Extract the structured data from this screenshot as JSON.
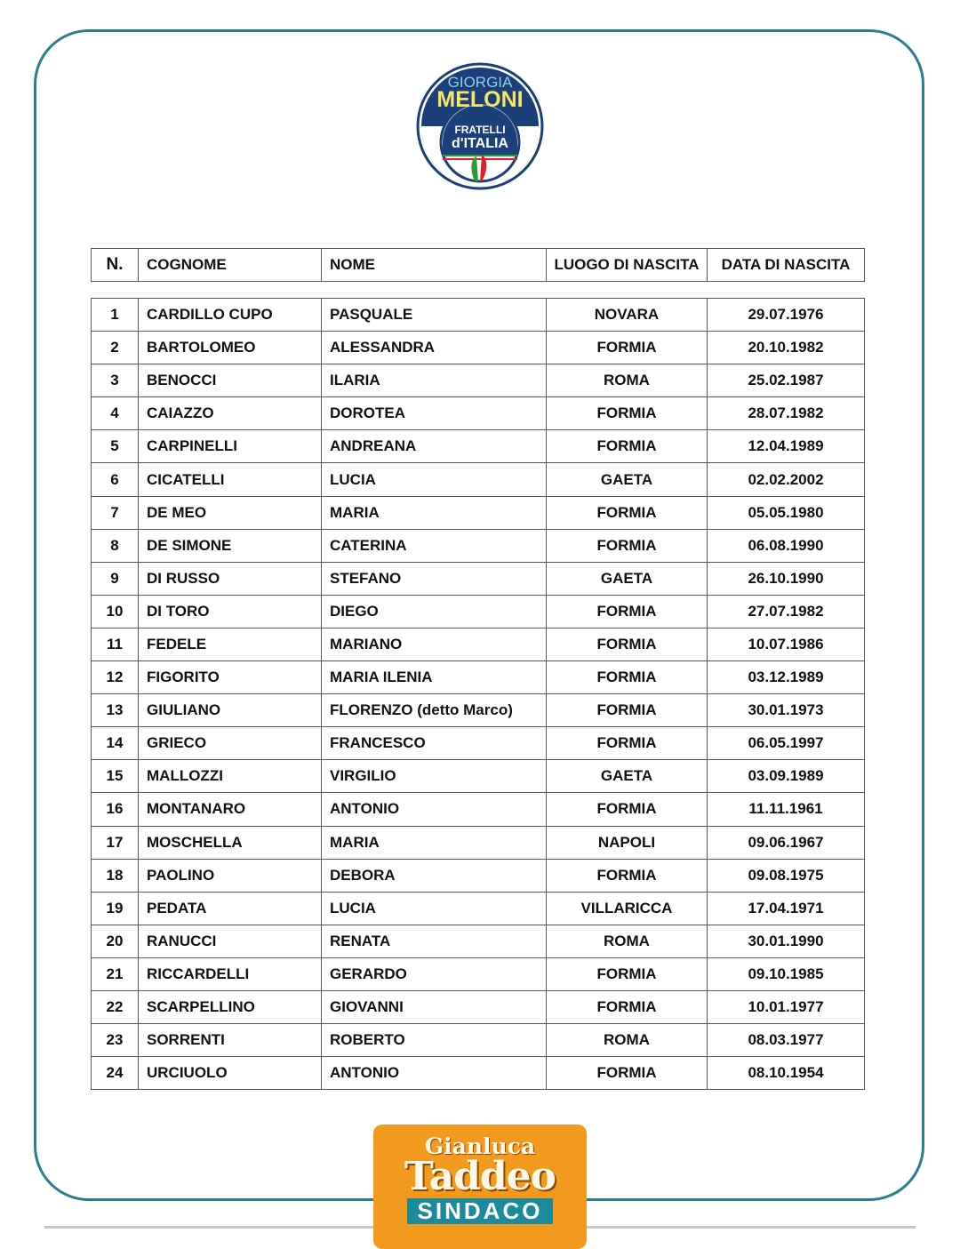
{
  "logo": {
    "line1": "GIORGIA",
    "line2": "MELONI",
    "line3": "FRATELLI",
    "line4": "d'ITALIA"
  },
  "table": {
    "headers": [
      "N.",
      "COGNOME",
      "NOME",
      "LUOGO DI NASCITA",
      "DATA DI NASCITA"
    ],
    "rows": [
      [
        "1",
        "CARDILLO CUPO",
        "PASQUALE",
        "NOVARA",
        "29.07.1976"
      ],
      [
        "2",
        "BARTOLOMEO",
        "ALESSANDRA",
        "FORMIA",
        "20.10.1982"
      ],
      [
        "3",
        "BENOCCI",
        "ILARIA",
        "ROMA",
        "25.02.1987"
      ],
      [
        "4",
        "CAIAZZO",
        "DOROTEA",
        "FORMIA",
        "28.07.1982"
      ],
      [
        "5",
        "CARPINELLI",
        "ANDREANA",
        "FORMIA",
        "12.04.1989"
      ],
      [
        "6",
        "CICATELLI",
        "LUCIA",
        "GAETA",
        "02.02.2002"
      ],
      [
        "7",
        "DE MEO",
        "MARIA",
        "FORMIA",
        "05.05.1980"
      ],
      [
        "8",
        "DE SIMONE",
        "CATERINA",
        "FORMIA",
        "06.08.1990"
      ],
      [
        "9",
        "DI RUSSO",
        "STEFANO",
        "GAETA",
        "26.10.1990"
      ],
      [
        "10",
        "DI TORO",
        "DIEGO",
        "FORMIA",
        "27.07.1982"
      ],
      [
        "11",
        "FEDELE",
        "MARIANO",
        "FORMIA",
        "10.07.1986"
      ],
      [
        "12",
        "FIGORITO",
        "MARIA ILENIA",
        "FORMIA",
        "03.12.1989"
      ],
      [
        "13",
        "GIULIANO",
        "FLORENZO (detto Marco)",
        "FORMIA",
        "30.01.1973"
      ],
      [
        "14",
        "GRIECO",
        "FRANCESCO",
        "FORMIA",
        "06.05.1997"
      ],
      [
        "15",
        "MALLOZZI",
        "VIRGILIO",
        "GAETA",
        "03.09.1989"
      ],
      [
        "16",
        "MONTANARO",
        "ANTONIO",
        "FORMIA",
        "11.11.1961"
      ],
      [
        "17",
        "MOSCHELLA",
        "MARIA",
        "NAPOLI",
        "09.06.1967"
      ],
      [
        "18",
        "PAOLINO",
        "DEBORA",
        "FORMIA",
        "09.08.1975"
      ],
      [
        "19",
        "PEDATA",
        "LUCIA",
        "VILLARICCA",
        "17.04.1971"
      ],
      [
        "20",
        "RANUCCI",
        "RENATA",
        "ROMA",
        "30.01.1990"
      ],
      [
        "21",
        "RICCARDELLI",
        "GERARDO",
        "FORMIA",
        "09.10.1985"
      ],
      [
        "22",
        "SCARPELLINO",
        "GIOVANNI",
        "FORMIA",
        "10.01.1977"
      ],
      [
        "23",
        "SORRENTI",
        "ROBERTO",
        "ROMA",
        "08.03.1977"
      ],
      [
        "24",
        "URCIUOLO",
        "ANTONIO",
        "FORMIA",
        "08.10.1954"
      ]
    ]
  },
  "badge": {
    "first_name": "Gianluca",
    "last_name": "Taddeo",
    "role": "SINDACO",
    "color": "#f29a1e",
    "role_color": "#1a8a9c"
  },
  "colors": {
    "frame": "#2a7f8c",
    "logo_blue": "#1c3f7a",
    "logo_yellow": "#f5e663"
  }
}
